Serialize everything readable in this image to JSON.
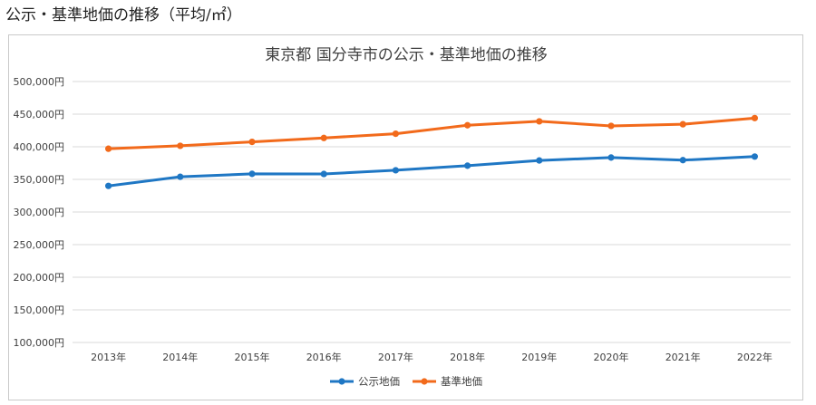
{
  "heading": "公示・基準地価の推移（平均/㎡）",
  "colors": {
    "koji": "#1f77c4",
    "kijun": "#f26a1b",
    "grid": "#d9d9d9"
  },
  "chart_data": {
    "type": "line",
    "title": "東京都 国分寺市の公示・基準地価の推移",
    "categories": [
      "2013年",
      "2014年",
      "2015年",
      "2016年",
      "2017年",
      "2018年",
      "2019年",
      "2020年",
      "2021年",
      "2022年"
    ],
    "ylim": [
      100000,
      500000
    ],
    "yticks": [
      100000,
      150000,
      200000,
      250000,
      300000,
      350000,
      400000,
      450000,
      500000
    ],
    "ytick_labels": [
      "100,000円",
      "150,000円",
      "200,000円",
      "250,000円",
      "300,000円",
      "350,000円",
      "400,000円",
      "450,000円",
      "500,000円"
    ],
    "grid": true,
    "legend_position": "bottom",
    "series": [
      {
        "name": "公示地価",
        "color": "#1f77c4",
        "values": [
          340000,
          354000,
          358500,
          358300,
          364000,
          371000,
          379000,
          383500,
          379500,
          385000
        ]
      },
      {
        "name": "基準地価",
        "color": "#f26a1b",
        "values": [
          397000,
          401500,
          407500,
          413500,
          420000,
          433000,
          439000,
          432000,
          434500,
          444000
        ]
      }
    ]
  }
}
